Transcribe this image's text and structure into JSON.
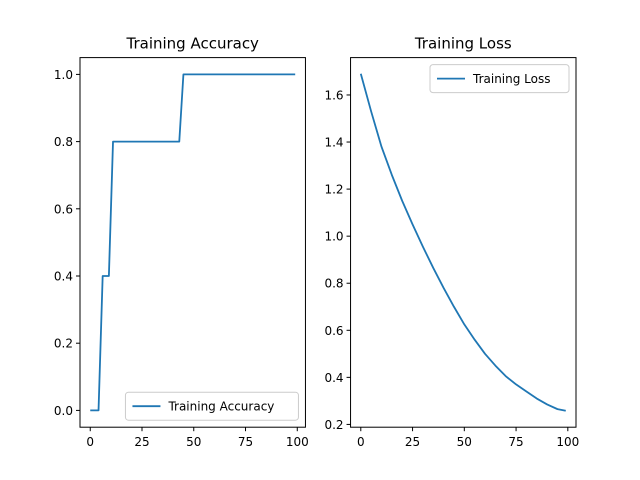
{
  "chart_data": [
    {
      "type": "line",
      "title": "Training Accuracy",
      "xlabel": "",
      "ylabel": "",
      "xlim": [
        -4.95,
        103.95
      ],
      "ylim": [
        -0.05,
        1.05
      ],
      "xticks": [
        0,
        25,
        50,
        75,
        100
      ],
      "yticks": [
        0.0,
        0.2,
        0.4,
        0.6,
        0.8,
        1.0
      ],
      "xtick_labels": [
        "0",
        "25",
        "50",
        "75",
        "100"
      ],
      "ytick_labels": [
        "0.0",
        "0.2",
        "0.4",
        "0.6",
        "0.8",
        "1.0"
      ],
      "grid": false,
      "legend_position": "lower-right",
      "colors": {
        "series": "#1f77b4"
      },
      "series": [
        {
          "name": "Training Accuracy",
          "x": [
            0,
            4,
            5,
            6,
            9,
            10,
            11,
            43,
            44,
            45,
            99
          ],
          "y": [
            0.0,
            0.0,
            0.2,
            0.4,
            0.4,
            0.6,
            0.8,
            0.8,
            0.9,
            1.0,
            1.0
          ]
        }
      ]
    },
    {
      "type": "line",
      "title": "Training Loss",
      "xlabel": "",
      "ylabel": "",
      "xlim": [
        -4.95,
        103.95
      ],
      "ylim": [
        0.1882,
        1.7588
      ],
      "xticks": [
        0,
        25,
        50,
        75,
        100
      ],
      "yticks": [
        0.2,
        0.4,
        0.6,
        0.8,
        1.0,
        1.2,
        1.4,
        1.6
      ],
      "xtick_labels": [
        "0",
        "25",
        "50",
        "75",
        "100"
      ],
      "ytick_labels": [
        "0.2",
        "0.4",
        "0.6",
        "0.8",
        "1.0",
        "1.2",
        "1.4",
        "1.6"
      ],
      "grid": false,
      "legend_position": "upper-right",
      "colors": {
        "series": "#1f77b4"
      },
      "series": [
        {
          "name": "Training Loss",
          "x": [
            0,
            5,
            10,
            15,
            20,
            25,
            30,
            35,
            40,
            45,
            50,
            55,
            60,
            65,
            70,
            75,
            80,
            85,
            90,
            95,
            99
          ],
          "y": [
            1.69,
            1.53,
            1.38,
            1.26,
            1.15,
            1.05,
            0.955,
            0.865,
            0.78,
            0.7,
            0.625,
            0.56,
            0.5,
            0.45,
            0.405,
            0.37,
            0.34,
            0.31,
            0.285,
            0.265,
            0.258
          ]
        }
      ]
    }
  ]
}
